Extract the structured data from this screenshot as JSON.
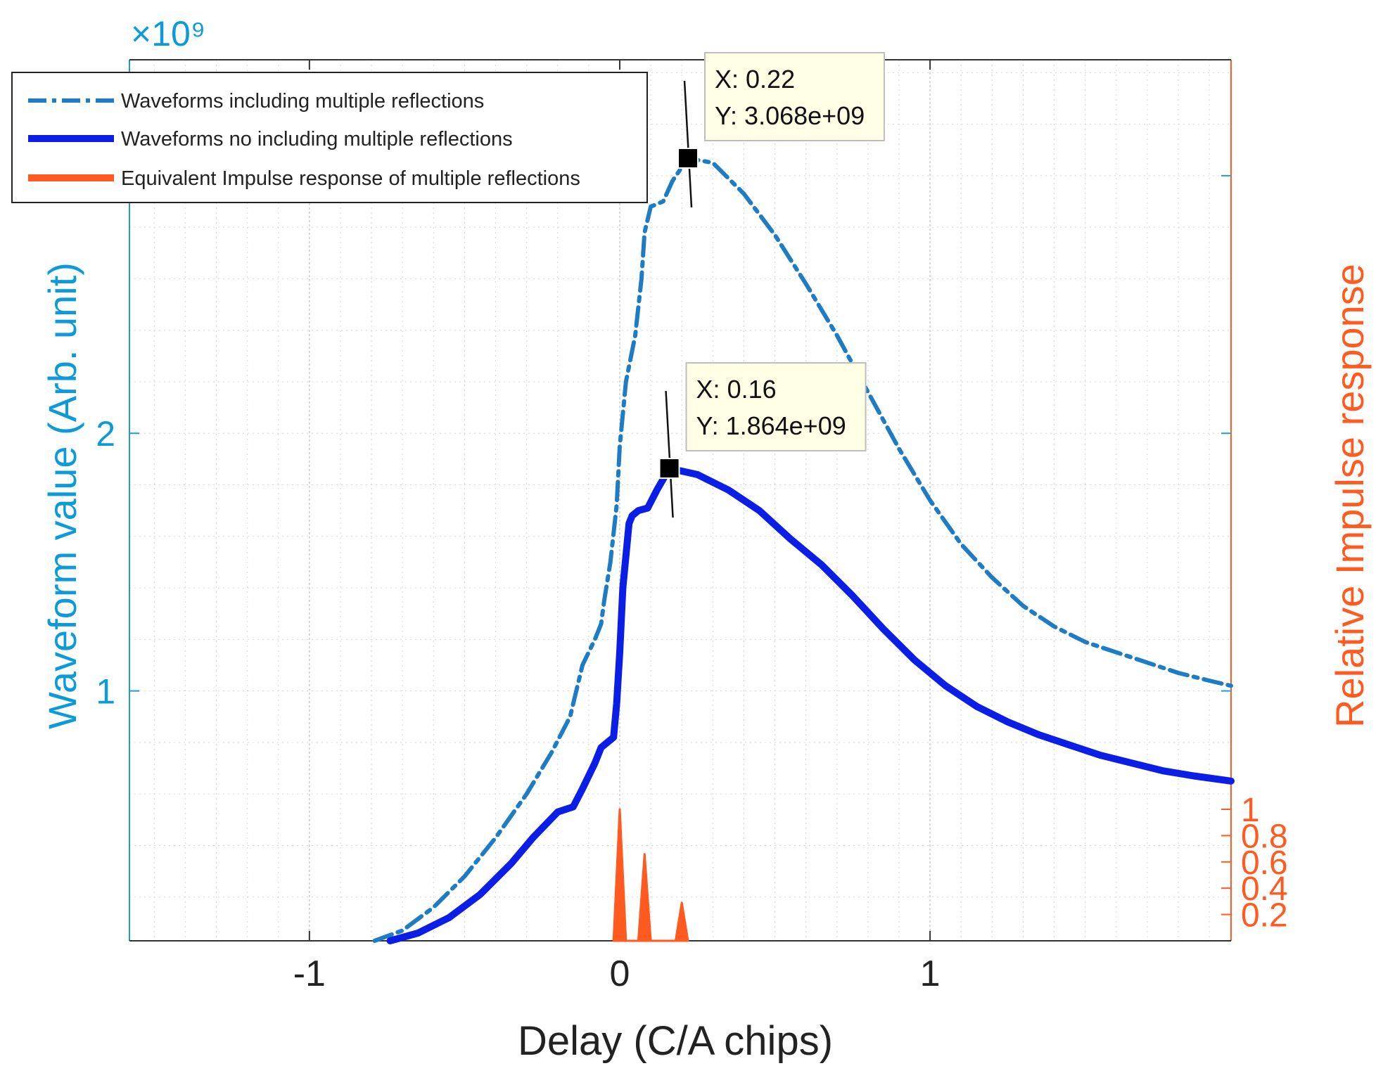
{
  "chart_data": {
    "type": "line",
    "x_axis": {
      "label": "Delay (C/A chips)",
      "range": [
        -1.58,
        1.97
      ],
      "ticks": [
        -1,
        0,
        1
      ],
      "tick_labels": [
        "-1",
        "0",
        "1"
      ]
    },
    "y_left": {
      "label": "Waveform value (Arb. unit)",
      "exponent_label": "×10⁹",
      "range": [
        0.03,
        3.45
      ],
      "ticks": [
        1,
        2
      ],
      "tick_labels": [
        "1",
        "2"
      ],
      "minor_ticks": [
        3
      ],
      "color": "#0072BD"
    },
    "y_right": {
      "label": "Relative Impulse response",
      "range": [
        0,
        6.7
      ],
      "ticks": [
        0.2,
        0.4,
        0.6,
        0.8,
        1
      ],
      "tick_labels": [
        "0.2",
        "0.4",
        "0.6",
        "0.8",
        "1"
      ],
      "color": "#FF5A1F"
    },
    "grid": true,
    "legend": {
      "position": "top-left",
      "entries": [
        "Waveforms including multiple reflections",
        "Waveforms no including multiple reflections",
        "Equivalent Impulse response of multiple reflections"
      ]
    },
    "series": [
      {
        "name": "Waveforms including multiple reflections",
        "axis": "left",
        "style": "dashdot",
        "color": "#1E7CC4",
        "points": [
          [
            -0.79,
            0.03
          ],
          [
            -0.7,
            0.07
          ],
          [
            -0.6,
            0.16
          ],
          [
            -0.5,
            0.28
          ],
          [
            -0.4,
            0.43
          ],
          [
            -0.3,
            0.6
          ],
          [
            -0.22,
            0.76
          ],
          [
            -0.16,
            0.9
          ],
          [
            -0.12,
            1.1
          ],
          [
            -0.08,
            1.2
          ],
          [
            -0.06,
            1.26
          ],
          [
            -0.05,
            1.35
          ],
          [
            -0.03,
            1.5
          ],
          [
            -0.01,
            1.72
          ],
          [
            0.0,
            1.95
          ],
          [
            0.02,
            2.2
          ],
          [
            0.05,
            2.38
          ],
          [
            0.07,
            2.6
          ],
          [
            0.08,
            2.78
          ],
          [
            0.1,
            2.88
          ],
          [
            0.14,
            2.9
          ],
          [
            0.17,
            2.98
          ],
          [
            0.22,
            3.068
          ],
          [
            0.3,
            3.05
          ],
          [
            0.4,
            2.93
          ],
          [
            0.5,
            2.77
          ],
          [
            0.6,
            2.58
          ],
          [
            0.7,
            2.38
          ],
          [
            0.8,
            2.16
          ],
          [
            0.9,
            1.94
          ],
          [
            1.0,
            1.74
          ],
          [
            1.1,
            1.57
          ],
          [
            1.2,
            1.44
          ],
          [
            1.3,
            1.33
          ],
          [
            1.4,
            1.25
          ],
          [
            1.5,
            1.19
          ],
          [
            1.6,
            1.15
          ],
          [
            1.7,
            1.11
          ],
          [
            1.8,
            1.07
          ],
          [
            1.9,
            1.04
          ],
          [
            1.97,
            1.02
          ]
        ]
      },
      {
        "name": "Waveforms no including multiple reflections",
        "axis": "left",
        "style": "solid",
        "color": "#0A1EE6",
        "points": [
          [
            -0.74,
            0.03
          ],
          [
            -0.65,
            0.06
          ],
          [
            -0.55,
            0.12
          ],
          [
            -0.45,
            0.21
          ],
          [
            -0.35,
            0.33
          ],
          [
            -0.28,
            0.43
          ],
          [
            -0.2,
            0.53
          ],
          [
            -0.15,
            0.55
          ],
          [
            -0.12,
            0.62
          ],
          [
            -0.08,
            0.72
          ],
          [
            -0.06,
            0.78
          ],
          [
            -0.04,
            0.8
          ],
          [
            -0.02,
            0.82
          ],
          [
            -0.01,
            0.95
          ],
          [
            0.0,
            1.15
          ],
          [
            0.01,
            1.4
          ],
          [
            0.03,
            1.65
          ],
          [
            0.04,
            1.68
          ],
          [
            0.06,
            1.7
          ],
          [
            0.09,
            1.71
          ],
          [
            0.12,
            1.78
          ],
          [
            0.16,
            1.864
          ],
          [
            0.25,
            1.84
          ],
          [
            0.35,
            1.78
          ],
          [
            0.45,
            1.7
          ],
          [
            0.55,
            1.59
          ],
          [
            0.65,
            1.49
          ],
          [
            0.75,
            1.37
          ],
          [
            0.85,
            1.24
          ],
          [
            0.95,
            1.12
          ],
          [
            1.05,
            1.02
          ],
          [
            1.15,
            0.94
          ],
          [
            1.25,
            0.88
          ],
          [
            1.35,
            0.83
          ],
          [
            1.45,
            0.79
          ],
          [
            1.55,
            0.75
          ],
          [
            1.65,
            0.72
          ],
          [
            1.75,
            0.69
          ],
          [
            1.85,
            0.67
          ],
          [
            1.97,
            0.65
          ]
        ]
      },
      {
        "name": "Equivalent Impulse response of multiple reflections",
        "axis": "right",
        "style": "solid",
        "color": "#FF5A1F",
        "points": [
          [
            -0.02,
            0
          ],
          [
            0.0,
            1.0
          ],
          [
            0.02,
            0
          ],
          [
            0.06,
            0
          ],
          [
            0.08,
            0.66
          ],
          [
            0.1,
            0
          ],
          [
            0.18,
            0
          ],
          [
            0.2,
            0.29
          ],
          [
            0.22,
            0
          ]
        ]
      }
    ],
    "annotations": [
      {
        "point": [
          0.22,
          3.068
        ],
        "series": 0,
        "lines": [
          "X: 0.22",
          "Y: 3.068e+09"
        ]
      },
      {
        "point": [
          0.16,
          1.864
        ],
        "series": 1,
        "lines": [
          "X: 0.16",
          "Y: 1.864e+09"
        ]
      }
    ]
  }
}
